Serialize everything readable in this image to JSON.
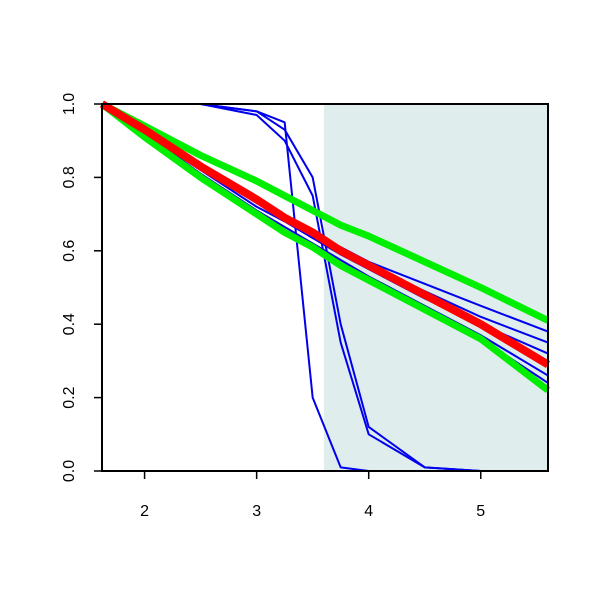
{
  "chart_data": {
    "type": "line",
    "x": [
      1.62,
      2,
      2.5,
      3,
      3.25,
      3.5,
      3.75,
      4,
      4.5,
      5,
      5.6
    ],
    "series": [
      {
        "color": "#0000ee",
        "width": 2,
        "values": [
          1.0,
          0.93,
          0.83,
          0.74,
          0.695,
          0.65,
          0.61,
          0.57,
          0.51,
          0.45,
          0.38
        ]
      },
      {
        "color": "#0000ee",
        "width": 2,
        "values": [
          1.0,
          0.93,
          0.83,
          0.73,
          0.69,
          0.645,
          0.6,
          0.56,
          0.49,
          0.42,
          0.35
        ]
      },
      {
        "color": "#0000ee",
        "width": 2,
        "values": [
          1.0,
          0.92,
          0.82,
          0.72,
          0.68,
          0.635,
          0.59,
          0.55,
          0.47,
          0.4,
          0.32
        ]
      },
      {
        "color": "#0000ee",
        "width": 2,
        "values": [
          1.0,
          0.92,
          0.81,
          0.71,
          0.665,
          0.62,
          0.575,
          0.53,
          0.45,
          0.37,
          0.26
        ]
      },
      {
        "color": "#0000ee",
        "width": 2,
        "values": [
          1.0,
          0.91,
          0.8,
          0.7,
          0.655,
          0.61,
          0.565,
          0.52,
          0.44,
          0.36,
          0.24
        ]
      },
      {
        "color": "#0000ee",
        "width": 2,
        "values": [
          1.0,
          1.0,
          1.0,
          0.98,
          0.95,
          0.2,
          0.01,
          0.0,
          0.0,
          0.0,
          0.0
        ]
      },
      {
        "color": "#0000ee",
        "width": 2,
        "values": [
          1.0,
          1.0,
          1.0,
          0.98,
          0.93,
          0.8,
          0.4,
          0.12,
          0.01,
          0.0,
          0.0
        ]
      },
      {
        "color": "#0000ee",
        "width": 2,
        "values": [
          1.0,
          1.0,
          1.0,
          0.97,
          0.9,
          0.75,
          0.35,
          0.1,
          0.01,
          0.0,
          0.0
        ]
      },
      {
        "color": "#00ee00",
        "width": 7,
        "values": [
          1.0,
          0.94,
          0.86,
          0.79,
          0.75,
          0.71,
          0.67,
          0.64,
          0.57,
          0.5,
          0.41
        ]
      },
      {
        "color": "#00ee00",
        "width": 7,
        "values": [
          1.0,
          0.91,
          0.8,
          0.7,
          0.65,
          0.61,
          0.56,
          0.52,
          0.44,
          0.36,
          0.22
        ]
      },
      {
        "color": "#ff0000",
        "width": 8,
        "values": [
          1.0,
          0.93,
          0.83,
          0.74,
          0.69,
          0.65,
          0.6,
          0.56,
          0.48,
          0.4,
          0.29
        ]
      }
    ],
    "shaded_region": [
      3.6,
      5.6
    ],
    "shaded_color": "#e0eded",
    "xlim": [
      1.62,
      5.6
    ],
    "ylim": [
      0,
      1
    ],
    "xticks": [
      2,
      3,
      4,
      5
    ],
    "yticks": [
      {
        "value": 0,
        "label": "0.0"
      },
      0.2,
      0.4,
      0.6,
      0.8,
      {
        "value": 1,
        "label": "1.0"
      }
    ]
  }
}
